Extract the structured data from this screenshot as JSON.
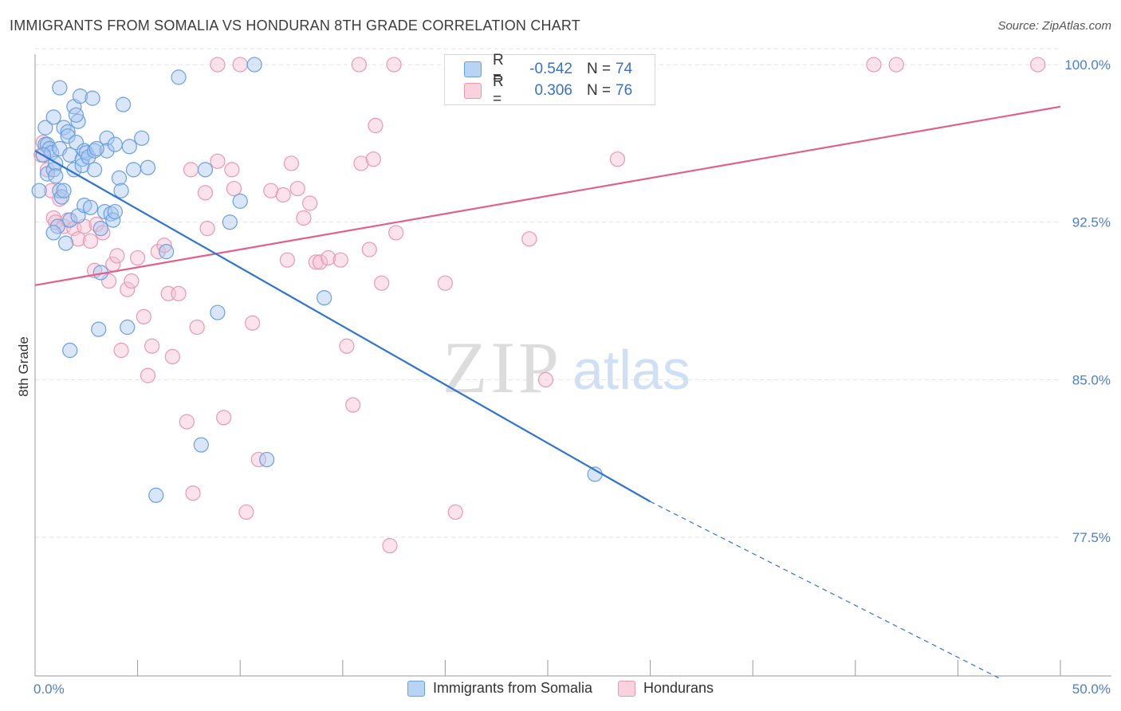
{
  "title": "IMMIGRANTS FROM SOMALIA VS HONDURAN 8TH GRADE CORRELATION CHART",
  "source": "Source: ZipAtlas.com",
  "watermark": {
    "zip": "ZIP",
    "atlas": "atlas"
  },
  "legend": {
    "rows": [
      {
        "r_label": "R =",
        "r_value": "-0.542",
        "n_label": "N =",
        "n_value": "74"
      },
      {
        "r_label": "R =",
        "r_value": "0.306",
        "n_label": "N =",
        "n_value": "76"
      }
    ]
  },
  "colors": {
    "somalia_fill": "#a9c8f0",
    "somalia_stroke": "#6a9fe0",
    "somalia_line": "#2f74d0",
    "honduran_fill": "#f6c1d2",
    "honduran_stroke": "#e898b3",
    "honduran_line": "#e0608a",
    "tick_label": "#4a7fd0",
    "grid": "#e2e2e2"
  },
  "chart_data": {
    "type": "scatter",
    "title": "IMMIGRANTS FROM SOMALIA VS HONDURAN 8TH GRADE CORRELATION CHART",
    "ylabel": "8th Grade",
    "xlabel": "",
    "xlim": [
      0,
      50
    ],
    "ylim": [
      70.9,
      100.8
    ],
    "x_tick_labels": [
      "0.0%",
      "50.0%"
    ],
    "y_ticks": [
      77.5,
      85.0,
      92.5,
      100.0
    ],
    "y_tick_labels": [
      "77.5%",
      "85.0%",
      "92.5%",
      "100.0%"
    ],
    "grid": true,
    "series": [
      {
        "name": "Immigrants from Somalia",
        "r": -0.542,
        "n": 74,
        "trend": {
          "x0": 0.0,
          "y0": 95.9,
          "x1": 30.0,
          "y1": 79.2,
          "dash_to_x": 47.0,
          "dash_to_y": 70.8
        },
        "points": [
          [
            0.2,
            94.0
          ],
          [
            0.5,
            96.2
          ],
          [
            0.5,
            97.0
          ],
          [
            0.6,
            96.2
          ],
          [
            0.7,
            96.0
          ],
          [
            0.6,
            94.8
          ],
          [
            0.8,
            95.8
          ],
          [
            0.9,
            95.0
          ],
          [
            0.9,
            97.5
          ],
          [
            1.0,
            95.3
          ],
          [
            1.0,
            94.7
          ],
          [
            1.1,
            92.3
          ],
          [
            1.2,
            96.0
          ],
          [
            1.2,
            94.0
          ],
          [
            1.3,
            93.7
          ],
          [
            1.4,
            97.0
          ],
          [
            1.4,
            94.0
          ],
          [
            1.6,
            96.8
          ],
          [
            1.6,
            96.6
          ],
          [
            1.7,
            95.7
          ],
          [
            1.7,
            92.6
          ],
          [
            1.9,
            95.0
          ],
          [
            1.9,
            98.0
          ],
          [
            2.0,
            96.3
          ],
          [
            2.1,
            97.3
          ],
          [
            2.1,
            92.8
          ],
          [
            2.2,
            98.5
          ],
          [
            2.3,
            95.5
          ],
          [
            2.3,
            95.2
          ],
          [
            2.4,
            93.3
          ],
          [
            2.4,
            95.9
          ],
          [
            2.5,
            95.8
          ],
          [
            2.6,
            95.6
          ],
          [
            2.7,
            93.2
          ],
          [
            2.8,
            98.4
          ],
          [
            2.9,
            95.9
          ],
          [
            2.9,
            95.0
          ],
          [
            3.1,
            87.4
          ],
          [
            3.2,
            90.1
          ],
          [
            3.2,
            92.2
          ],
          [
            3.4,
            93.0
          ],
          [
            3.5,
            96.5
          ],
          [
            3.5,
            95.9
          ],
          [
            3.7,
            92.9
          ],
          [
            3.8,
            92.6
          ],
          [
            3.9,
            96.2
          ],
          [
            3.9,
            93.0
          ],
          [
            4.1,
            94.6
          ],
          [
            4.2,
            94.0
          ],
          [
            4.3,
            98.1
          ],
          [
            4.5,
            87.5
          ],
          [
            4.8,
            95.0
          ],
          [
            5.2,
            96.5
          ],
          [
            5.5,
            95.1
          ],
          [
            5.9,
            79.5
          ],
          [
            6.4,
            91.1
          ],
          [
            7.0,
            99.4
          ],
          [
            8.3,
            95.0
          ],
          [
            8.1,
            81.9
          ],
          [
            8.9,
            88.2
          ],
          [
            9.5,
            92.5
          ],
          [
            10.0,
            93.5
          ],
          [
            10.7,
            100.0
          ],
          [
            11.3,
            81.2
          ],
          [
            14.1,
            88.9
          ],
          [
            27.3,
            80.5
          ],
          [
            1.7,
            86.4
          ],
          [
            0.9,
            92.0
          ],
          [
            1.5,
            91.5
          ],
          [
            2.0,
            97.6
          ],
          [
            3.0,
            96.0
          ],
          [
            4.6,
            96.1
          ],
          [
            0.4,
            95.7
          ],
          [
            1.2,
            98.9
          ]
        ]
      },
      {
        "name": "Hondurans",
        "r": 0.306,
        "n": 76,
        "trend": {
          "x0": 0.0,
          "y0": 89.5,
          "x1": 50.0,
          "y1": 98.0
        },
        "points": [
          [
            0.3,
            95.7
          ],
          [
            0.4,
            96.3
          ],
          [
            0.6,
            95.0
          ],
          [
            0.8,
            94.0
          ],
          [
            0.9,
            92.7
          ],
          [
            1.0,
            92.5
          ],
          [
            1.2,
            93.6
          ],
          [
            1.4,
            92.3
          ],
          [
            1.6,
            92.6
          ],
          [
            1.9,
            92.2
          ],
          [
            2.1,
            91.7
          ],
          [
            2.4,
            92.3
          ],
          [
            2.7,
            91.6
          ],
          [
            2.9,
            90.2
          ],
          [
            3.0,
            92.4
          ],
          [
            3.3,
            92.0
          ],
          [
            3.6,
            89.7
          ],
          [
            3.8,
            90.5
          ],
          [
            4.0,
            90.9
          ],
          [
            4.2,
            86.4
          ],
          [
            4.5,
            89.3
          ],
          [
            4.7,
            89.7
          ],
          [
            5.0,
            90.8
          ],
          [
            5.3,
            88.0
          ],
          [
            5.5,
            85.2
          ],
          [
            5.7,
            86.6
          ],
          [
            6.0,
            91.1
          ],
          [
            6.3,
            91.4
          ],
          [
            6.5,
            89.1
          ],
          [
            6.7,
            86.1
          ],
          [
            7.0,
            89.1
          ],
          [
            7.4,
            83.0
          ],
          [
            7.6,
            95.0
          ],
          [
            7.7,
            79.6
          ],
          [
            7.9,
            87.5
          ],
          [
            8.3,
            93.9
          ],
          [
            8.4,
            92.2
          ],
          [
            8.9,
            95.4
          ],
          [
            9.2,
            83.2
          ],
          [
            9.6,
            95.0
          ],
          [
            9.7,
            94.1
          ],
          [
            10.3,
            78.7
          ],
          [
            10.6,
            87.7
          ],
          [
            10.9,
            81.2
          ],
          [
            11.5,
            94.0
          ],
          [
            12.1,
            93.8
          ],
          [
            12.3,
            90.7
          ],
          [
            12.5,
            95.3
          ],
          [
            12.8,
            94.1
          ],
          [
            13.1,
            92.7
          ],
          [
            13.4,
            93.4
          ],
          [
            13.7,
            90.6
          ],
          [
            13.9,
            90.6
          ],
          [
            14.3,
            90.8
          ],
          [
            14.9,
            90.7
          ],
          [
            15.2,
            86.6
          ],
          [
            15.5,
            83.8
          ],
          [
            15.9,
            95.3
          ],
          [
            16.3,
            91.2
          ],
          [
            16.5,
            95.5
          ],
          [
            16.6,
            97.1
          ],
          [
            16.9,
            89.6
          ],
          [
            17.3,
            77.1
          ],
          [
            17.6,
            92.0
          ],
          [
            20.0,
            89.6
          ],
          [
            20.5,
            78.7
          ],
          [
            24.1,
            91.7
          ],
          [
            24.9,
            85.0
          ],
          [
            28.4,
            95.5
          ],
          [
            8.9,
            100.0
          ],
          [
            10.0,
            100.0
          ],
          [
            15.8,
            100.0
          ],
          [
            17.5,
            100.0
          ],
          [
            40.9,
            100.0
          ],
          [
            42.0,
            100.0
          ],
          [
            48.9,
            100.0
          ]
        ]
      }
    ]
  },
  "bottom_legend": [
    {
      "label": "Immigrants from Somalia"
    },
    {
      "label": "Hondurans"
    }
  ]
}
